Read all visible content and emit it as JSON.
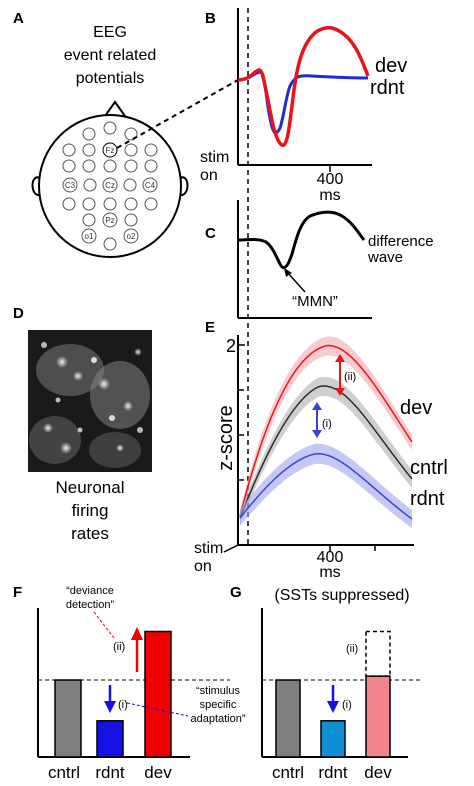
{
  "panel_labels": {
    "a": "A",
    "b": "B",
    "c": "C",
    "d": "D",
    "e": "E",
    "f": "F",
    "g": "G"
  },
  "panel_a": {
    "title_lines": [
      "EEG",
      "event related",
      "potentials"
    ],
    "electrodes": {
      "fz": "Fz",
      "cz": "Cz",
      "c3": "C3",
      "c4": "C4",
      "pz": "Pz",
      "o1": "o1",
      "o2": "o2"
    }
  },
  "panel_b": {
    "series_dev": "dev",
    "series_rdnt": "rdnt",
    "stim_label_1": "stim",
    "stim_label_2": "on",
    "tick_label": "400",
    "unit_label": "ms",
    "colors": {
      "dev": "#e8141c",
      "rdnt": "#1f2bd6"
    }
  },
  "panel_c": {
    "wave_label_1": "difference",
    "wave_label_2": "wave",
    "annotation": "“MMN”"
  },
  "panel_d": {
    "caption_lines": [
      "Neuronal",
      "firing",
      "rates"
    ]
  },
  "panel_e": {
    "ylabel": "z-score",
    "ytick_top": "2",
    "series": {
      "dev": "dev",
      "cntrl": "cntrl",
      "rdnt": "rdnt"
    },
    "marker_ii": "(ii)",
    "marker_i": "(i)",
    "stim_label_1": "stim",
    "stim_label_2": "on",
    "tick_label": "400",
    "unit_label": "ms",
    "colors": {
      "dev": "#e8141c",
      "cntrl": "#2b2b2b",
      "rdnt": "#3a44d8"
    }
  },
  "panel_f": {
    "annotation_red_lines": [
      "“deviance",
      "detection”"
    ],
    "annotation_blue_lines": [
      "“stimulus",
      "specific",
      "adaptation”"
    ],
    "marker_ii": "(ii)",
    "marker_i": "(i)",
    "categories": [
      "cntrl",
      "rdnt",
      "dev"
    ],
    "values": [
      1.0,
      0.47,
      1.63
    ],
    "colors": [
      "#7f7f7f",
      "#1410e6",
      "#f00000"
    ]
  },
  "panel_g": {
    "title": "(SSTs suppressed)",
    "marker_ii": "(ii)",
    "marker_i": "(i)",
    "categories": [
      "cntrl",
      "rdnt",
      "dev"
    ],
    "values": [
      1.0,
      0.47,
      1.05
    ],
    "ghost_value": 1.63,
    "colors": [
      "#7f7f7f",
      "#0f8fd6",
      "#f2868c"
    ]
  },
  "label_colors": {
    "cntrl": "#000000",
    "rdnt": "#1f2bd6",
    "dev": "#e8141c"
  }
}
